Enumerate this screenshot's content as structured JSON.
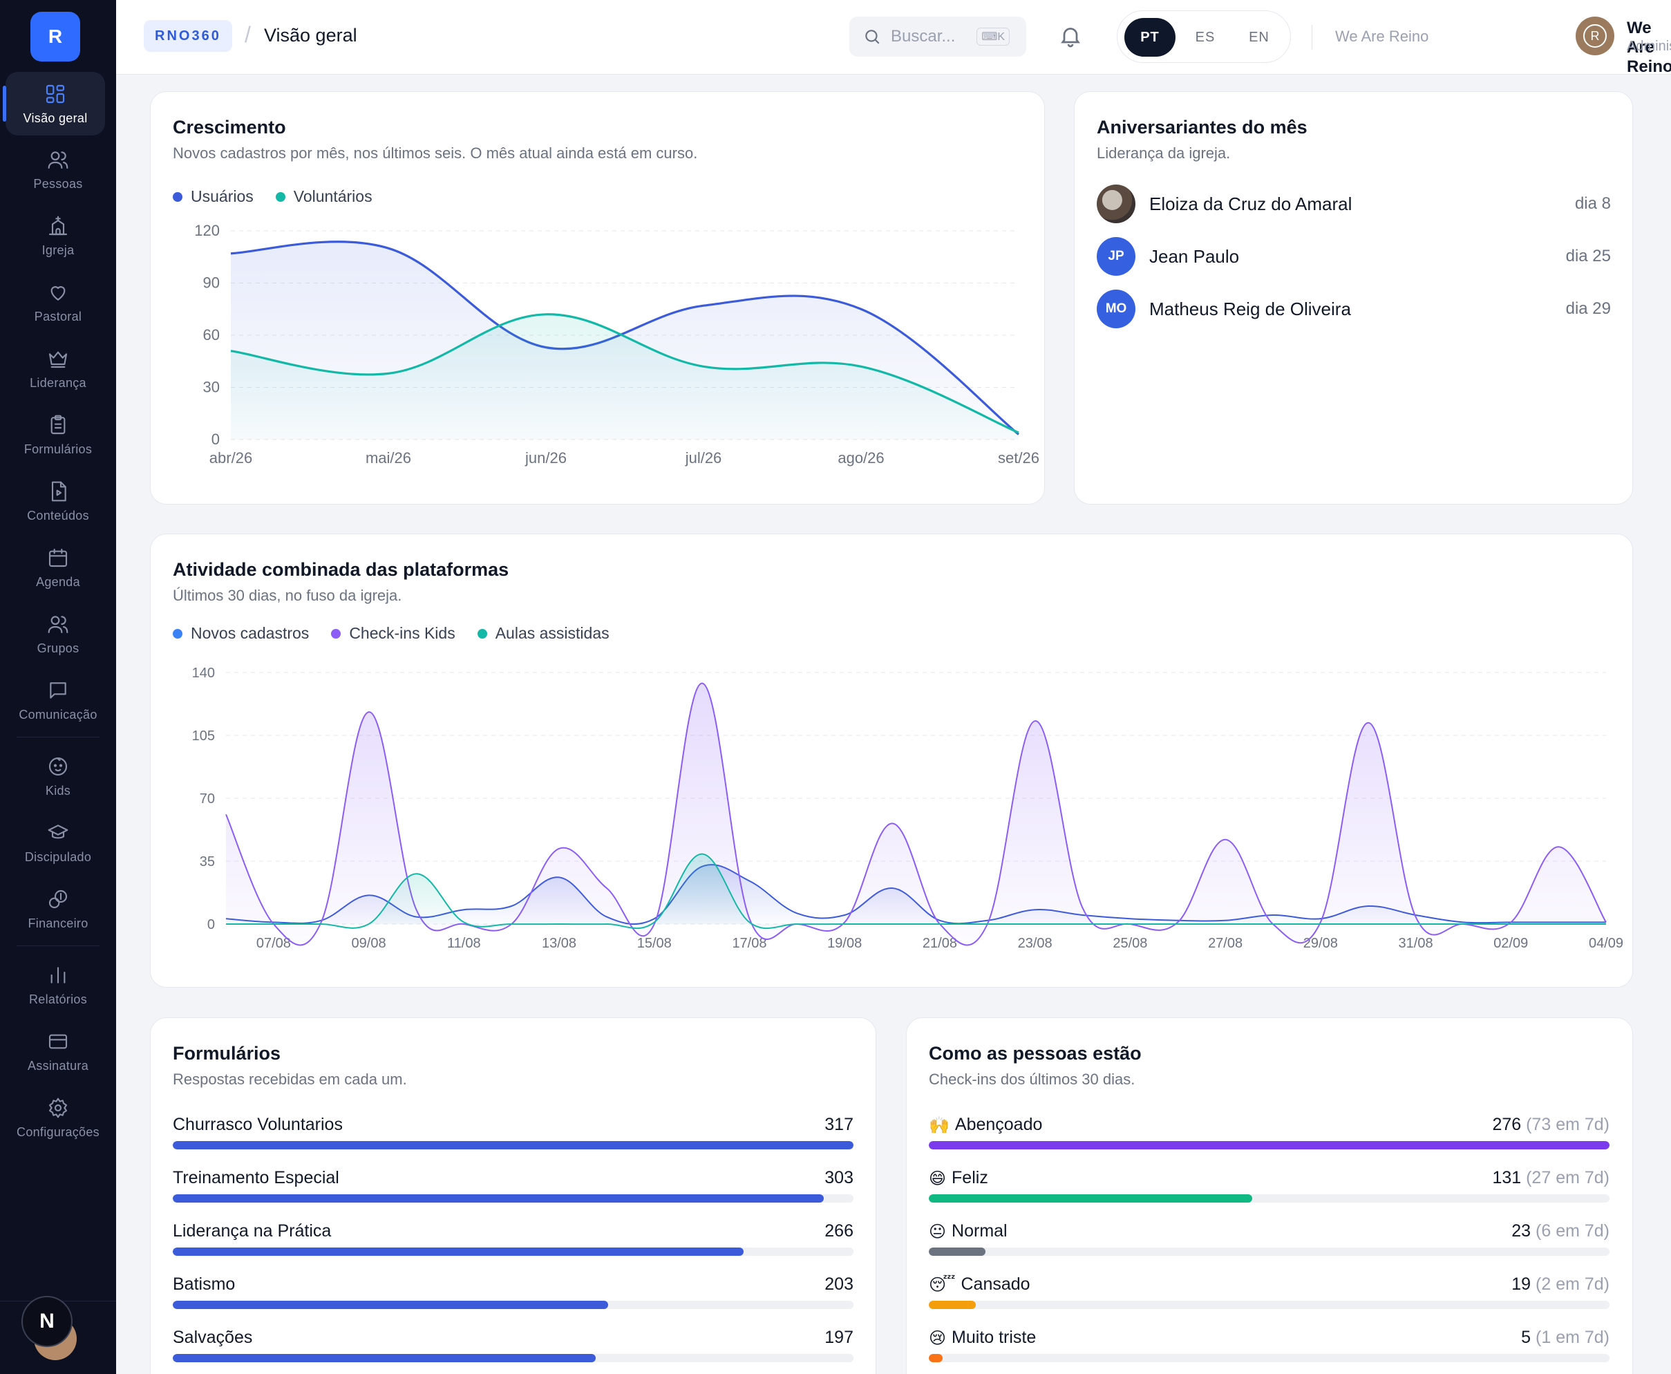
{
  "sidebar": {
    "logo": "R",
    "items": [
      {
        "label": "Visão geral",
        "icon": "dashboard-icon"
      },
      {
        "label": "Pessoas",
        "icon": "people-icon"
      },
      {
        "label": "Igreja",
        "icon": "church-icon"
      },
      {
        "label": "Pastoral",
        "icon": "heart-icon"
      },
      {
        "label": "Liderança",
        "icon": "crown-icon"
      },
      {
        "label": "Formulários",
        "icon": "clipboard-icon"
      },
      {
        "label": "Conteúdos",
        "icon": "file-play-icon"
      },
      {
        "label": "Agenda",
        "icon": "calendar-icon"
      },
      {
        "label": "Grupos",
        "icon": "group-icon"
      },
      {
        "label": "Comunicação",
        "icon": "chat-icon"
      },
      {
        "label": "Kids",
        "icon": "baby-icon"
      },
      {
        "label": "Discipulado",
        "icon": "graduation-icon"
      },
      {
        "label": "Financeiro",
        "icon": "coins-icon"
      },
      {
        "label": "Relatórios",
        "icon": "bar-chart-icon"
      },
      {
        "label": "Assinatura",
        "icon": "credit-card-icon"
      },
      {
        "label": "Configurações",
        "icon": "gear-icon"
      }
    ],
    "badge": "N"
  },
  "header": {
    "brand": "RNO360",
    "separator": "/",
    "title": "Visão geral",
    "search_placeholder": "Buscar...",
    "search_shortcut": "⌨K",
    "languages": [
      "PT",
      "ES",
      "EN"
    ],
    "active_language": "PT",
    "org_name": "We Are Reino",
    "user": {
      "name": "We Are Reino",
      "role": "Administrador",
      "initial": "R"
    }
  },
  "growth": {
    "title": "Crescimento",
    "subtitle": "Novos cadastros por mês, nos últimos seis. O mês atual ainda está em curso.",
    "legend": [
      "Usuários",
      "Voluntários"
    ]
  },
  "birthdays": {
    "title": "Aniversariantes do mês",
    "subtitle": "Liderança da igreja.",
    "people": [
      {
        "name": "Eloiza da Cruz do Amaral",
        "day": "dia 8",
        "initials": ""
      },
      {
        "name": "Jean Paulo",
        "day": "dia 25",
        "initials": "JP"
      },
      {
        "name": "Matheus Reig de Oliveira",
        "day": "dia 29",
        "initials": "MO"
      }
    ]
  },
  "activity": {
    "title": "Atividade combinada das plataformas",
    "subtitle": "Últimos 30 dias, no fuso da igreja.",
    "legend": [
      "Novos cadastros",
      "Check-ins Kids",
      "Aulas assistidas"
    ]
  },
  "forms": {
    "title": "Formulários",
    "subtitle": "Respostas recebidas em cada um.",
    "items": [
      {
        "label": "Churrasco Voluntarios",
        "value": "317",
        "pct": 1.0
      },
      {
        "label": "Treinamento Especial",
        "value": "303",
        "pct": 0.956
      },
      {
        "label": "Liderança na Prática",
        "value": "266",
        "pct": 0.839
      },
      {
        "label": "Batismo",
        "value": "203",
        "pct": 0.64
      },
      {
        "label": "Salvações",
        "value": "197",
        "pct": 0.621
      }
    ]
  },
  "mood": {
    "title": "Como as pessoas estão",
    "subtitle": "Check-ins dos últimos 30 dias.",
    "items": [
      {
        "emoji": "🙌",
        "label": "Abençoado",
        "value": "276",
        "week": "(73 em 7d)",
        "pct": 1.0,
        "color": "#7c3aed"
      },
      {
        "emoji": "😄",
        "label": "Feliz",
        "value": "131",
        "week": "(27 em 7d)",
        "pct": 0.475,
        "color": "#10b981"
      },
      {
        "emoji": "😐",
        "label": "Normal",
        "value": "23",
        "week": "(6 em 7d)",
        "pct": 0.083,
        "color": "#6b7280"
      },
      {
        "emoji": "😴",
        "label": "Cansado",
        "value": "19",
        "week": "(2 em 7d)",
        "pct": 0.069,
        "color": "#f59e0b"
      },
      {
        "emoji": "😢",
        "label": "Muito triste",
        "value": "5",
        "week": "(1 em 7d)",
        "pct": 0.02,
        "color": "#f97316"
      }
    ]
  },
  "colors": {
    "primary": "#3b5bdb",
    "teal": "#14b8a6",
    "purple": "#8b5cf6",
    "blue_bar": "#3b5bdb"
  },
  "chart_data": [
    {
      "type": "area",
      "x": [
        "abr/26",
        "mai/26",
        "jun/26",
        "jul/26",
        "ago/26",
        "set/26"
      ],
      "series": [
        {
          "name": "Usuários",
          "values": [
            107,
            110,
            53,
            77,
            75,
            3
          ],
          "color": "#3b5bdb"
        },
        {
          "name": "Voluntários",
          "values": [
            51,
            38,
            72,
            42,
            42,
            4
          ],
          "color": "#14b8a6"
        }
      ],
      "ylim": [
        0,
        120
      ],
      "yticks": [
        0,
        30,
        60,
        90,
        120
      ],
      "grid": true,
      "legend": "top-left"
    },
    {
      "type": "area",
      "x": [
        "06/08",
        "07/08",
        "08/08",
        "09/08",
        "10/08",
        "11/08",
        "12/08",
        "13/08",
        "14/08",
        "15/08",
        "16/08",
        "17/08",
        "18/08",
        "19/08",
        "20/08",
        "21/08",
        "22/08",
        "23/08",
        "24/08",
        "25/08",
        "26/08",
        "27/08",
        "28/08",
        "29/08",
        "30/08",
        "31/08",
        "01/09",
        "02/09",
        "03/09",
        "04/09"
      ],
      "xticks": [
        "07/08",
        "09/08",
        "11/08",
        "13/08",
        "15/08",
        "17/08",
        "19/08",
        "21/08",
        "23/08",
        "25/08",
        "27/08",
        "29/08",
        "31/08",
        "02/09",
        "04/09"
      ],
      "series": [
        {
          "name": "Novos cadastros",
          "values": [
            3,
            1,
            2,
            16,
            4,
            8,
            10,
            26,
            4,
            3,
            32,
            24,
            6,
            5,
            20,
            2,
            2,
            8,
            5,
            3,
            2,
            2,
            5,
            3,
            10,
            5,
            1,
            1,
            1,
            1
          ],
          "color": "#3b5bdb"
        },
        {
          "name": "Check-ins Kids",
          "values": [
            61,
            0,
            1,
            118,
            8,
            0,
            0,
            42,
            20,
            0,
            134,
            3,
            0,
            1,
            56,
            0,
            0,
            113,
            9,
            0,
            1,
            47,
            0,
            1,
            112,
            4,
            0,
            1,
            43,
            1
          ],
          "color": "#8b5cf6"
        },
        {
          "name": "Aulas assistidas",
          "values": [
            0,
            0,
            0,
            0,
            28,
            1,
            0,
            0,
            0,
            1,
            39,
            1,
            0,
            0,
            0,
            0,
            0,
            0,
            0,
            0,
            0,
            0,
            0,
            0,
            0,
            0,
            0,
            0,
            0,
            0
          ],
          "color": "#14b8a6"
        }
      ],
      "ylim": [
        0,
        140
      ],
      "yticks": [
        0,
        35,
        70,
        105,
        140
      ],
      "grid": true,
      "legend": "top-left"
    }
  ]
}
